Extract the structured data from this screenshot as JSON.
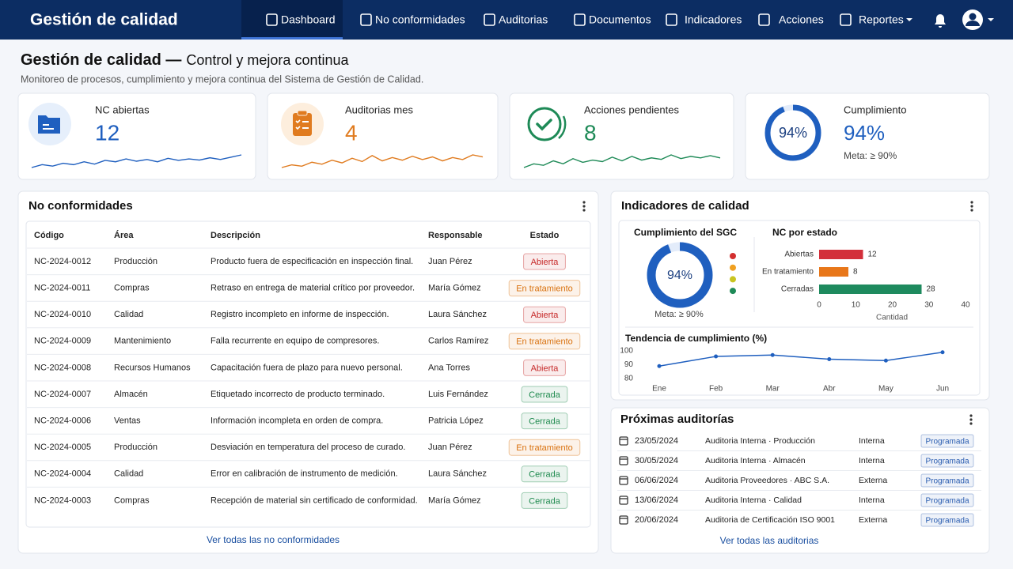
{
  "nav": {
    "brand": "Gestión de calidad",
    "items": [
      "Dashboard",
      "No conformidades",
      "Auditorias",
      "Documentos",
      "Indicadores",
      "Acciones",
      "Reportes"
    ]
  },
  "header": {
    "title": "Gestión de calidad —",
    "title_rest": "Control y mejora continua",
    "subtitle": "Monitoreo de procesos, cumplimiento y mejora continua del Sistema de Gestión de Calidad."
  },
  "kpis": [
    {
      "label": "NC abiertas",
      "value": "12",
      "color": "#1f5fbf",
      "spark": [
        3,
        4,
        3.5,
        4.5,
        4,
        5,
        4.2,
        5.5,
        5,
        6,
        5.2,
        5.8,
        5,
        6.2,
        5.5,
        6,
        5.6,
        6.4,
        5.8,
        6.6,
        7.4
      ]
    },
    {
      "label": "Auditorias mes",
      "value": "4",
      "color": "#e07b1f",
      "spark": [
        3,
        3.8,
        3.4,
        4.6,
        4,
        5.2,
        4.4,
        5.8,
        4.8,
        6.6,
        5,
        6,
        5.2,
        6.4,
        5.4,
        6.2,
        5,
        6,
        5.4,
        6.8,
        6.2
      ]
    },
    {
      "label": "Acciones pendientes",
      "value": "8",
      "color": "#1e8a57",
      "spark": [
        3,
        4,
        3.6,
        4.8,
        4,
        5.4,
        4.4,
        5,
        4.6,
        5.8,
        4.8,
        6,
        5,
        5.6,
        5.2,
        6.4,
        5.4,
        6,
        5.6,
        6.2,
        5.6
      ]
    },
    {
      "label": "Cumplimiento",
      "value": "94%",
      "color": "#1f5fbf",
      "note": "Meta: ≥ 90%",
      "ring": {
        "type": "donut",
        "value": 94,
        "value_label": "94%",
        "color": "#1f5fbf"
      }
    }
  ],
  "nc_panel": {
    "title": "No conformidades",
    "columns": [
      "Código",
      "Área",
      "Descripción",
      "Responsable",
      "Estado"
    ],
    "rows": [
      {
        "cells": [
          "NC-2024-0012",
          "Producción",
          "Producto fuera de especificación en inspección final.",
          "Juan Pérez",
          "Abierta"
        ],
        "color": "#c62828"
      },
      {
        "cells": [
          "NC-2024-0011",
          "Compras",
          "Retraso en entrega de material crítico por proveedor.",
          "María Gómez",
          "En tratamiento"
        ],
        "color": "#d9720f"
      },
      {
        "cells": [
          "NC-2024-0010",
          "Calidad",
          "Registro incompleto en informe de inspección.",
          "Laura Sánchez",
          "Abierta"
        ],
        "color": "#c62828"
      },
      {
        "cells": [
          "NC-2024-0009",
          "Mantenimiento",
          "Falla recurrente en equipo de compresores.",
          "Carlos Ramírez",
          "En tratamiento"
        ],
        "color": "#d9720f"
      },
      {
        "cells": [
          "NC-2024-0008",
          "Recursos Humanos",
          "Capacitación fuera de plazo para nuevo personal.",
          "Ana Torres",
          "Abierta"
        ],
        "color": "#c62828"
      },
      {
        "cells": [
          "NC-2024-0007",
          "Almacén",
          "Etiquetado incorrecto de producto terminado.",
          "Luis Fernández",
          "Cerrada"
        ],
        "color": "#1e8a4e"
      },
      {
        "cells": [
          "NC-2024-0006",
          "Ventas",
          "Información incompleta en orden de compra.",
          "Patricia López",
          "Cerrada"
        ],
        "color": "#1e8a4e"
      },
      {
        "cells": [
          "NC-2024-0005",
          "Producción",
          "Desviación en temperatura del proceso de curado.",
          "Juan Pérez",
          "En tratamiento"
        ],
        "color": "#d9720f"
      },
      {
        "cells": [
          "NC-2024-0004",
          "Calidad",
          "Error en calibración de instrumento de medición.",
          "Laura Sánchez",
          "Cerrada"
        ],
        "color": "#1e8a4e"
      },
      {
        "cells": [
          "NC-2024-0003",
          "Compras",
          "Recepción de material sin certificado de conformidad.",
          "María Gómez",
          "Cerrada"
        ],
        "color": "#1e8a4e"
      }
    ],
    "link": "Ver todas las no conformidades"
  },
  "indicators": {
    "title": "Indicadores de calidad",
    "sgc": {
      "type": "donut",
      "title": "Cumplimiento del SGC",
      "value": 94,
      "value_label": "94%",
      "color": "#1f5fbf",
      "note": "Meta: ≥ 90%",
      "legend_colors": [
        "#d32f2f",
        "#f0a020",
        "#c9c420",
        "#1e8a57"
      ]
    },
    "nc_estado": {
      "type": "bar",
      "orientation": "horizontal",
      "title": "NC por estado",
      "categories": [
        "Abiertas",
        "En tratamiento",
        "Cerradas"
      ],
      "values": [
        12,
        8,
        28
      ],
      "colors": [
        "#d32f3a",
        "#e8771a",
        "#1e8a5e"
      ],
      "xlim": [
        0,
        40
      ],
      "xticks": [
        0,
        10,
        20,
        30,
        40
      ],
      "x_label": "Cantidad"
    },
    "tendencia": {
      "type": "line",
      "title": "Tendencia de cumplimiento (%)",
      "categories": [
        "Ene",
        "Feb",
        "Mar",
        "Abr",
        "May",
        "Jun"
      ],
      "values": [
        89,
        96,
        97,
        94,
        93,
        99
      ],
      "color": "#1f5fbf",
      "ylim": [
        80,
        100
      ],
      "yticks": [
        80,
        90,
        100
      ]
    }
  },
  "audits": {
    "title": "Próximas auditorías",
    "rows": [
      [
        "23/05/2024",
        "Auditoria Interna · Producción",
        "Interna",
        "Programada"
      ],
      [
        "30/05/2024",
        "Auditoria Interna · Almacén",
        "Interna",
        "Programada"
      ],
      [
        "06/06/2024",
        "Auditoria Proveedores · ABC S.A.",
        "Externa",
        "Programada"
      ],
      [
        "13/06/2024",
        "Auditoria Interna · Calidad",
        "Interna",
        "Programada"
      ],
      [
        "20/06/2024",
        "Auditoria de Certificación ISO 9001",
        "Externa",
        "Programada"
      ]
    ],
    "badge_color": "#2a5db0",
    "link": "Ver todas las auditorias"
  }
}
